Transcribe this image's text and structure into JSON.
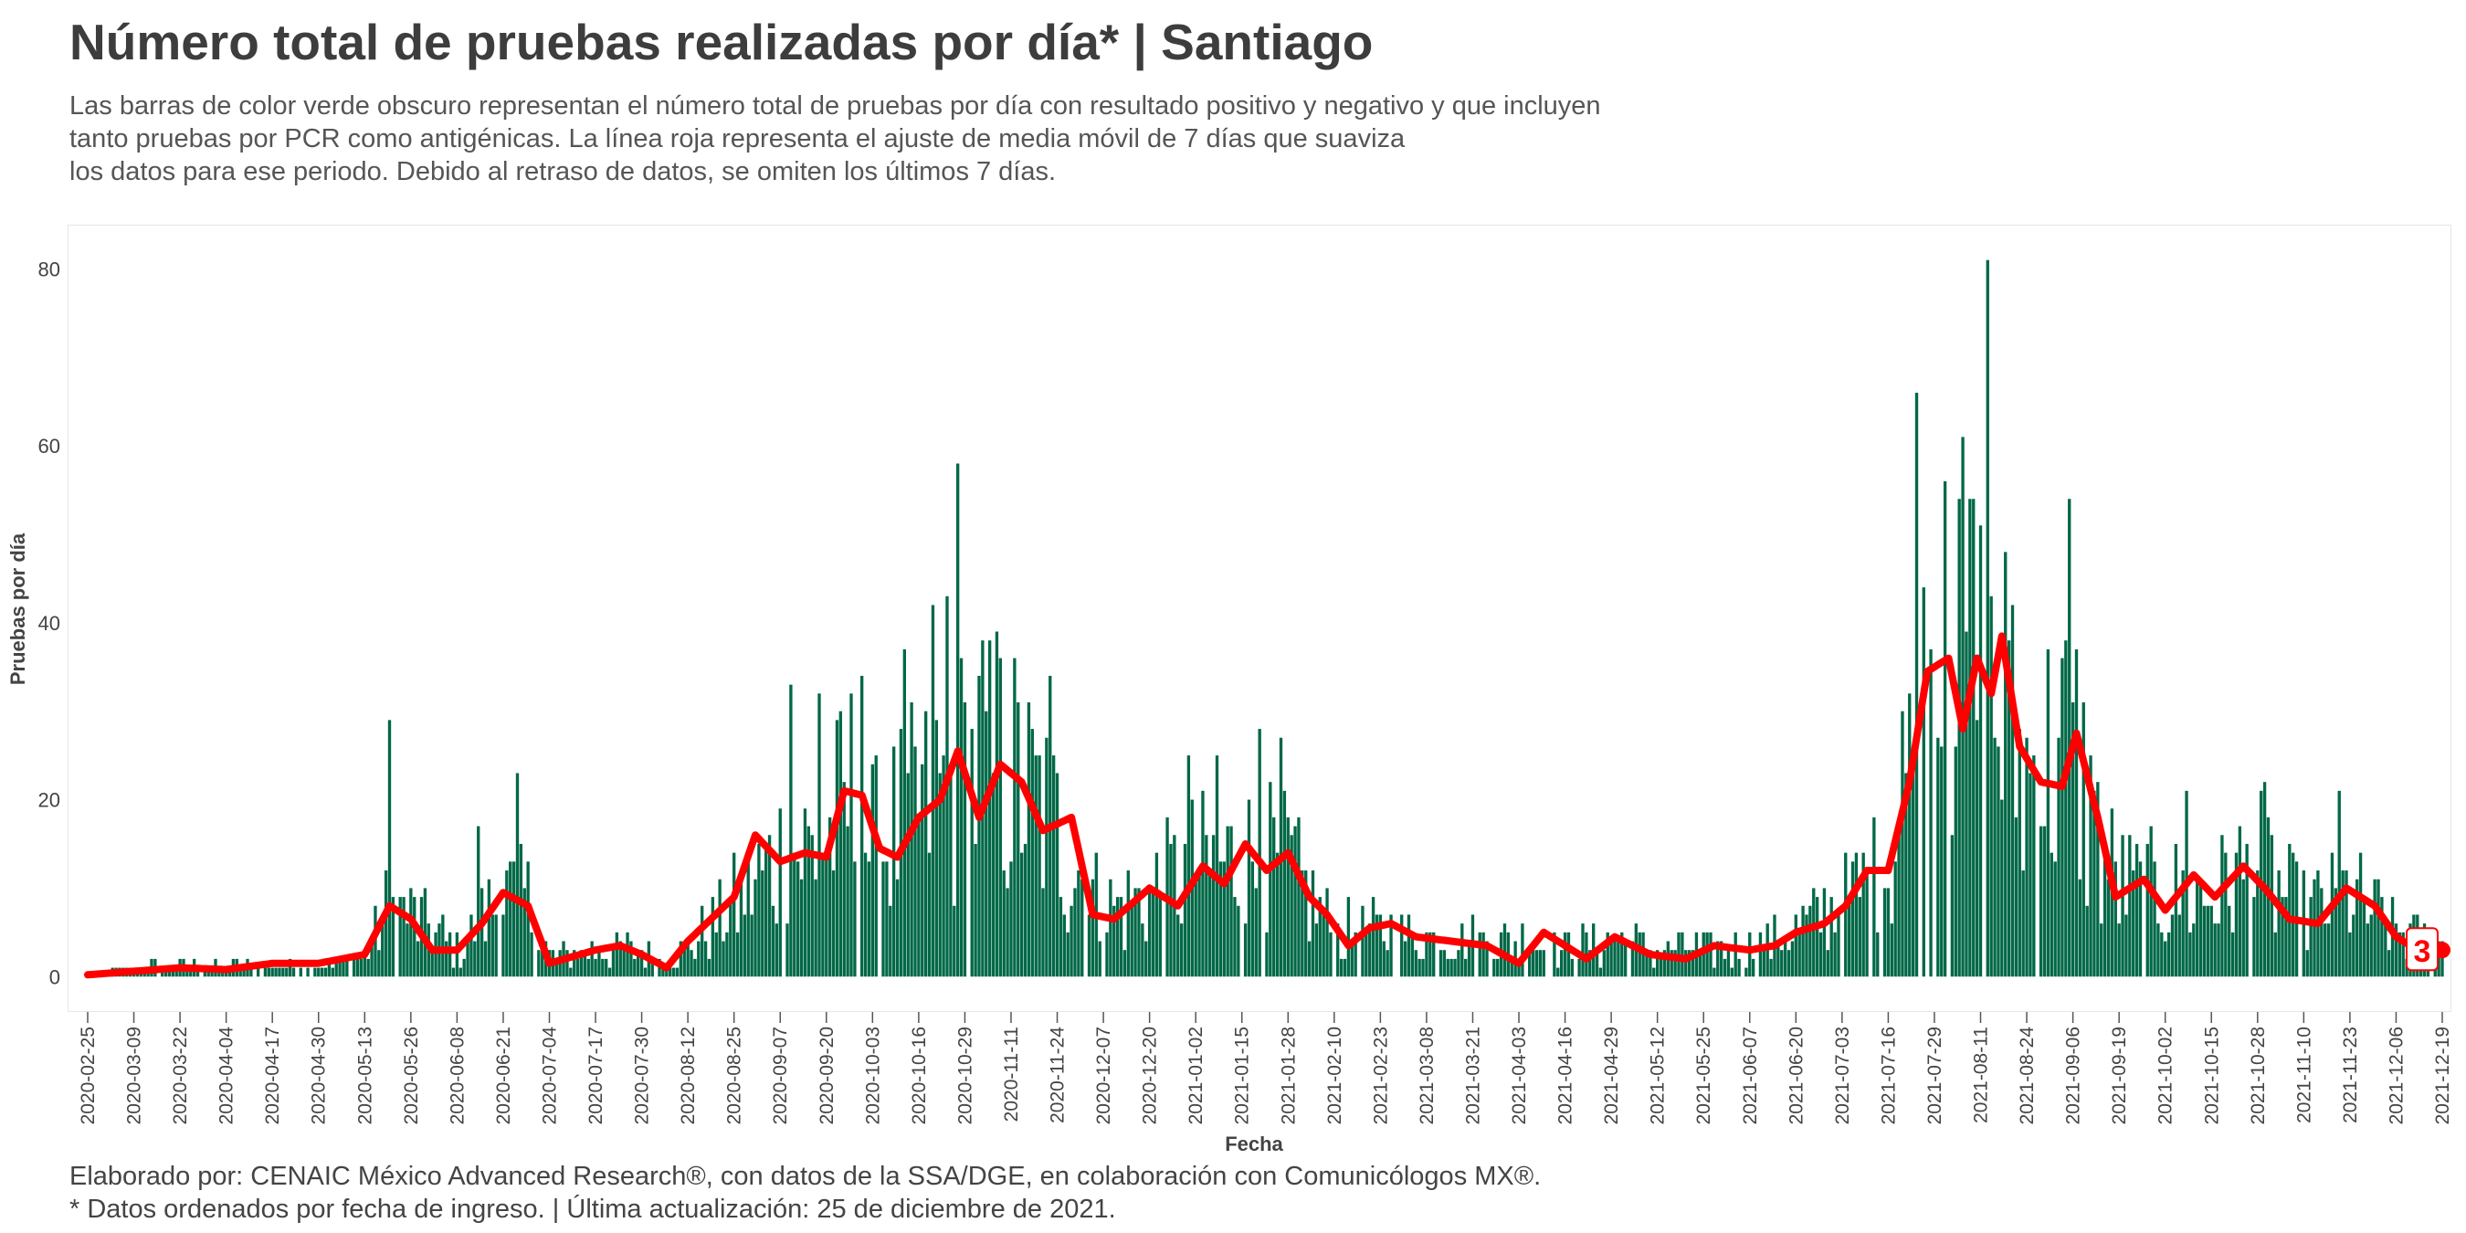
{
  "header": {
    "title": "Número total de pruebas realizadas por día* | Santiago",
    "subtitle_lines": [
      "Las barras de color verde obscuro representan el número total de pruebas por día con resultado positivo y negativo y que incluyen",
      "tanto pruebas por PCR como antigénicas. La línea roja representa el ajuste de media móvil de 7 días que suaviza",
      "los datos para ese periodo. Debido al retraso de datos, se omiten los últimos 7 días."
    ]
  },
  "footer": {
    "line1": "Elaborado por: CENAIC México Advanced Research®, con datos de la SSA/DGE, en colaboración con Comunicólogos MX®.",
    "line2": "* Datos ordenados por fecha de ingreso. | Última actualización: 25 de diciembre de 2021."
  },
  "colors": {
    "bars": "#006847",
    "moving_average": "#ff0000",
    "label_border": "#ff0000"
  },
  "chart_data": {
    "type": "bar",
    "title": "Número total de pruebas realizadas por día* | Santiago",
    "xlabel": "Fecha",
    "ylabel": "Pruebas por día",
    "ylim": [
      -4,
      85
    ],
    "y_ticks": [
      0,
      20,
      40,
      60,
      80
    ],
    "x_range": [
      "2020-02-25",
      "2021-12-19"
    ],
    "x_ticks": [
      "2020-02-25",
      "2020-03-09",
      "2020-03-22",
      "2020-04-04",
      "2020-04-17",
      "2020-04-30",
      "2020-05-13",
      "2020-05-26",
      "2020-06-08",
      "2020-06-21",
      "2020-07-04",
      "2020-07-17",
      "2020-07-30",
      "2020-08-12",
      "2020-08-25",
      "2020-09-07",
      "2020-09-20",
      "2020-10-03",
      "2020-10-16",
      "2020-10-29",
      "2020-11-11",
      "2020-11-24",
      "2020-12-07",
      "2020-12-20",
      "2021-01-02",
      "2021-01-15",
      "2021-01-28",
      "2021-02-10",
      "2021-02-23",
      "2021-03-08",
      "2021-03-21",
      "2021-04-03",
      "2021-04-16",
      "2021-04-29",
      "2021-05-12",
      "2021-05-25",
      "2021-06-07",
      "2021-06-20",
      "2021-07-03",
      "2021-07-16",
      "2021-07-29",
      "2021-08-11",
      "2021-08-24",
      "2021-09-06",
      "2021-09-19",
      "2021-10-02",
      "2021-10-15",
      "2021-10-28",
      "2021-11-10",
      "2021-11-23",
      "2021-12-06",
      "2021-12-19"
    ],
    "grid": false,
    "series": [
      {
        "name": "Pruebas por día",
        "kind": "bar",
        "anchors": [
          [
            "2020-02-25",
            0
          ],
          [
            "2020-03-09",
            1
          ],
          [
            "2020-03-22",
            1
          ],
          [
            "2020-04-04",
            1
          ],
          [
            "2020-04-17",
            1
          ],
          [
            "2020-04-30",
            1
          ],
          [
            "2020-05-13",
            2
          ],
          [
            "2020-05-20",
            8
          ],
          [
            "2020-05-26",
            7
          ],
          [
            "2020-06-08",
            3
          ],
          [
            "2020-06-21",
            9
          ],
          [
            "2020-06-28",
            8
          ],
          [
            "2020-07-04",
            2
          ],
          [
            "2020-07-17",
            3
          ],
          [
            "2020-07-30",
            3
          ],
          [
            "2020-08-05",
            1
          ],
          [
            "2020-08-12",
            3
          ],
          [
            "2020-08-25",
            8
          ],
          [
            "2020-09-07",
            13
          ],
          [
            "2020-09-20",
            15
          ],
          [
            "2020-09-27",
            20
          ],
          [
            "2020-10-03",
            14
          ],
          [
            "2020-10-16",
            18
          ],
          [
            "2020-10-29",
            22
          ],
          [
            "2020-11-11",
            22
          ],
          [
            "2020-11-24",
            16
          ],
          [
            "2020-12-07",
            7
          ],
          [
            "2020-12-20",
            9
          ],
          [
            "2021-01-02",
            12
          ],
          [
            "2021-01-15",
            13
          ],
          [
            "2021-01-28",
            12
          ],
          [
            "2021-02-10",
            5
          ],
          [
            "2021-02-23",
            5
          ],
          [
            "2021-03-08",
            4
          ],
          [
            "2021-03-21",
            4
          ],
          [
            "2021-04-03",
            4
          ],
          [
            "2021-04-16",
            3
          ],
          [
            "2021-04-29",
            4
          ],
          [
            "2021-05-12",
            3
          ],
          [
            "2021-05-25",
            3
          ],
          [
            "2021-06-07",
            3
          ],
          [
            "2021-06-20",
            5
          ],
          [
            "2021-07-03",
            8
          ],
          [
            "2021-07-16",
            12
          ],
          [
            "2021-07-22",
            22
          ],
          [
            "2021-07-29",
            33
          ],
          [
            "2021-08-05",
            35
          ],
          [
            "2021-08-11",
            32
          ],
          [
            "2021-08-24",
            22
          ],
          [
            "2021-09-06",
            25
          ],
          [
            "2021-09-13",
            15
          ],
          [
            "2021-09-19",
            10
          ],
          [
            "2021-10-02",
            9
          ],
          [
            "2021-10-15",
            9
          ],
          [
            "2021-10-28",
            12
          ],
          [
            "2021-11-10",
            7
          ],
          [
            "2021-11-23",
            9
          ],
          [
            "2021-12-06",
            5
          ],
          [
            "2021-12-19",
            3
          ]
        ],
        "spikes": [
          [
            "2020-05-20",
            29
          ],
          [
            "2020-06-25",
            23
          ],
          [
            "2020-06-14",
            17
          ],
          [
            "2020-09-10",
            33
          ],
          [
            "2020-09-18",
            32
          ],
          [
            "2020-09-30",
            34
          ],
          [
            "2020-10-12",
            37
          ],
          [
            "2020-10-20",
            42
          ],
          [
            "2020-10-24",
            43
          ],
          [
            "2020-10-27",
            58
          ],
          [
            "2020-11-03",
            38
          ],
          [
            "2020-11-07",
            39
          ],
          [
            "2020-11-22",
            34
          ],
          [
            "2020-12-31",
            25
          ],
          [
            "2021-01-08",
            25
          ],
          [
            "2021-01-20",
            28
          ],
          [
            "2021-01-26",
            27
          ],
          [
            "2021-07-20",
            30
          ],
          [
            "2021-07-24",
            66
          ],
          [
            "2021-08-01",
            56
          ],
          [
            "2021-08-05",
            54
          ],
          [
            "2021-08-09",
            54
          ],
          [
            "2021-08-13",
            81
          ],
          [
            "2021-08-18",
            48
          ],
          [
            "2021-09-05",
            54
          ],
          [
            "2021-09-11",
            25
          ],
          [
            "2021-10-08",
            21
          ],
          [
            "2021-10-30",
            22
          ],
          [
            "2021-11-20",
            21
          ]
        ]
      },
      {
        "name": "Media móvil 7 días",
        "kind": "line",
        "points": [
          [
            "2020-02-25",
            0.2
          ],
          [
            "2020-03-09",
            0.6
          ],
          [
            "2020-03-22",
            1.0
          ],
          [
            "2020-04-04",
            0.8
          ],
          [
            "2020-04-17",
            1.5
          ],
          [
            "2020-04-30",
            1.5
          ],
          [
            "2020-05-13",
            2.5
          ],
          [
            "2020-05-20",
            8.0
          ],
          [
            "2020-05-26",
            6.5
          ],
          [
            "2020-06-01",
            3.0
          ],
          [
            "2020-06-08",
            3.0
          ],
          [
            "2020-06-15",
            6.0
          ],
          [
            "2020-06-21",
            9.5
          ],
          [
            "2020-06-28",
            8.0
          ],
          [
            "2020-07-04",
            1.5
          ],
          [
            "2020-07-17",
            3.0
          ],
          [
            "2020-07-24",
            3.5
          ],
          [
            "2020-07-30",
            2.5
          ],
          [
            "2020-08-06",
            1.0
          ],
          [
            "2020-08-12",
            4.0
          ],
          [
            "2020-08-25",
            9.0
          ],
          [
            "2020-08-31",
            16.0
          ],
          [
            "2020-09-07",
            13.0
          ],
          [
            "2020-09-14",
            14.0
          ],
          [
            "2020-09-20",
            13.5
          ],
          [
            "2020-09-25",
            21.0
          ],
          [
            "2020-09-30",
            20.5
          ],
          [
            "2020-10-05",
            14.5
          ],
          [
            "2020-10-10",
            13.5
          ],
          [
            "2020-10-16",
            18.0
          ],
          [
            "2020-10-22",
            20.0
          ],
          [
            "2020-10-27",
            25.5
          ],
          [
            "2020-11-02",
            18.0
          ],
          [
            "2020-11-08",
            24.0
          ],
          [
            "2020-11-14",
            22.0
          ],
          [
            "2020-11-20",
            16.5
          ],
          [
            "2020-11-28",
            18.0
          ],
          [
            "2020-12-04",
            7.0
          ],
          [
            "2020-12-10",
            6.5
          ],
          [
            "2020-12-20",
            10.0
          ],
          [
            "2020-12-28",
            8.0
          ],
          [
            "2021-01-04",
            12.5
          ],
          [
            "2021-01-10",
            10.5
          ],
          [
            "2021-01-16",
            15.0
          ],
          [
            "2021-01-22",
            12.0
          ],
          [
            "2021-01-28",
            14.0
          ],
          [
            "2021-02-03",
            9.0
          ],
          [
            "2021-02-08",
            7.0
          ],
          [
            "2021-02-14",
            3.5
          ],
          [
            "2021-02-20",
            5.5
          ],
          [
            "2021-02-26",
            6.0
          ],
          [
            "2021-03-05",
            4.5
          ],
          [
            "2021-03-15",
            4.0
          ],
          [
            "2021-03-25",
            3.5
          ],
          [
            "2021-04-03",
            1.5
          ],
          [
            "2021-04-10",
            5.0
          ],
          [
            "2021-04-22",
            2.0
          ],
          [
            "2021-04-30",
            4.5
          ],
          [
            "2021-05-10",
            2.5
          ],
          [
            "2021-05-20",
            2.0
          ],
          [
            "2021-05-28",
            3.5
          ],
          [
            "2021-06-07",
            3.0
          ],
          [
            "2021-06-14",
            3.5
          ],
          [
            "2021-06-20",
            5.0
          ],
          [
            "2021-06-28",
            6.0
          ],
          [
            "2021-07-04",
            8.0
          ],
          [
            "2021-07-10",
            12.0
          ],
          [
            "2021-07-16",
            12.0
          ],
          [
            "2021-07-22",
            22.0
          ],
          [
            "2021-07-27",
            34.5
          ],
          [
            "2021-08-02",
            36.0
          ],
          [
            "2021-08-06",
            28.0
          ],
          [
            "2021-08-10",
            36.0
          ],
          [
            "2021-08-14",
            32.0
          ],
          [
            "2021-08-17",
            38.5
          ],
          [
            "2021-08-22",
            26.0
          ],
          [
            "2021-08-28",
            22.0
          ],
          [
            "2021-09-03",
            21.5
          ],
          [
            "2021-09-07",
            27.5
          ],
          [
            "2021-09-13",
            18.0
          ],
          [
            "2021-09-18",
            9.0
          ],
          [
            "2021-09-26",
            11.0
          ],
          [
            "2021-10-02",
            7.5
          ],
          [
            "2021-10-10",
            11.5
          ],
          [
            "2021-10-16",
            9.0
          ],
          [
            "2021-10-24",
            12.5
          ],
          [
            "2021-10-30",
            10.0
          ],
          [
            "2021-11-06",
            6.5
          ],
          [
            "2021-11-14",
            6.0
          ],
          [
            "2021-11-22",
            10.0
          ],
          [
            "2021-11-30",
            8.0
          ],
          [
            "2021-12-06",
            4.5
          ],
          [
            "2021-12-12",
            3.0
          ],
          [
            "2021-12-19",
            3.0
          ]
        ]
      }
    ],
    "annotations": [
      {
        "text": "3",
        "x": "2021-12-19",
        "y": 3,
        "color": "#ff0000"
      }
    ]
  }
}
